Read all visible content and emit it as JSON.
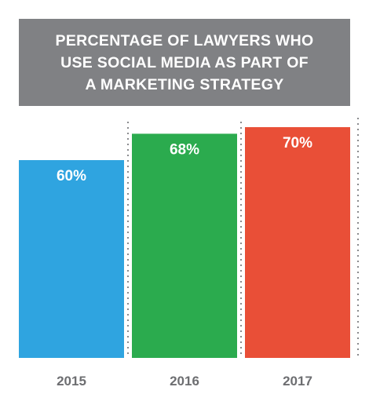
{
  "chart_data": {
    "type": "bar",
    "title": "PERCENTAGE OF LAWYERS WHO\nUSE SOCIAL MEDIA AS PART OF\nA MARKETING STRATEGY",
    "categories": [
      "2015",
      "2016",
      "2017"
    ],
    "values": [
      60,
      68,
      70
    ],
    "value_labels": [
      "60%",
      "68%",
      "70%"
    ],
    "colors": [
      "#2fa4e0",
      "#2bab4e",
      "#e94f37"
    ],
    "title_background": "#808184",
    "ylim": [
      0,
      100
    ],
    "grid": false,
    "legend": "none",
    "xlabel": "",
    "ylabel": ""
  }
}
